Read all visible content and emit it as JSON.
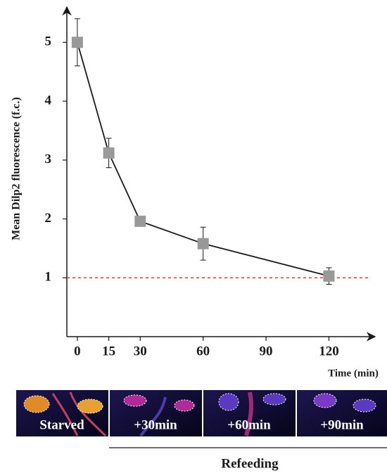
{
  "chart_data": {
    "type": "line",
    "y_label": "Mean Dilp2 fluorescence (f.c.)",
    "x_label": "Time (min)",
    "x": [
      0,
      15,
      30,
      60,
      120
    ],
    "series": [
      {
        "color": "#999999",
        "values": [
          5,
          3.12,
          1.96,
          1.58,
          1.03
        ],
        "errors": [
          0.4,
          0.25,
          0.08,
          0.28,
          0.14
        ]
      }
    ],
    "xlim": [
      -5,
      142
    ],
    "ylim": [
      0,
      5.6
    ],
    "xticks": [
      0,
      15,
      30,
      60,
      90,
      120
    ],
    "yticks": [
      1,
      2,
      3,
      4,
      5
    ],
    "reference_line": {
      "value": 1,
      "color": "#e8383d"
    },
    "panels": [
      "Starved",
      "+30min",
      "+60min",
      "+90min"
    ],
    "panel_group_label": "Refeeding"
  }
}
